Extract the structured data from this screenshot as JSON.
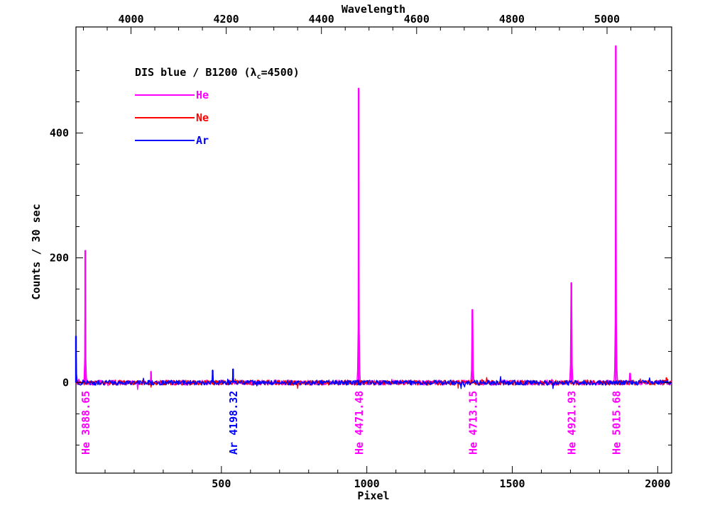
{
  "chart_data": {
    "type": "line",
    "title": "DIS blue / B1200 (λ",
    "title_sub": "c",
    "title_tail": "=4500)",
    "xlabel": "Pixel",
    "ylabel": "Counts / 30 sec",
    "x2label": "Wavelength",
    "xlim": [
      0,
      2048
    ],
    "ylim": [
      -145,
      570
    ],
    "x_ticks": [
      500,
      1000,
      1500,
      2000
    ],
    "y_ticks": [
      0,
      200,
      400
    ],
    "wavelength_ticks": [
      4000,
      4200,
      4400,
      4600,
      4800,
      5000
    ],
    "wavelength_calibration": {
      "lambda0": 3884.4,
      "dispersion": 0.611
    },
    "noise_amplitude": 4,
    "grid": false,
    "legend_position": "top-left",
    "series": [
      {
        "name": "He",
        "color": "#ff00ff",
        "peaks": [
          {
            "x": 32,
            "y": 212
          },
          {
            "x": 258,
            "y": 18
          },
          {
            "x": 972,
            "y": 472
          },
          {
            "x": 1363,
            "y": 117
          },
          {
            "x": 1703,
            "y": 160
          },
          {
            "x": 1856,
            "y": 540
          },
          {
            "x": 1905,
            "y": 15
          }
        ]
      },
      {
        "name": "Ne",
        "color": "#ff0000",
        "peaks": [
          {
            "x": 2030,
            "y": 8
          }
        ]
      },
      {
        "name": "Ar",
        "color": "#0000ff",
        "peaks": [
          {
            "x": 0,
            "y": 75
          },
          {
            "x": 470,
            "y": 20
          },
          {
            "x": 540,
            "y": 22
          }
        ]
      }
    ],
    "line_labels": [
      {
        "text": "He 3888.65",
        "x": 32,
        "color": "#ff00ff"
      },
      {
        "text": "Ar 4198.32",
        "x": 540,
        "color": "#0000ff"
      },
      {
        "text": "He 4471.48",
        "x": 972,
        "color": "#ff00ff"
      },
      {
        "text": "He 4713.15",
        "x": 1363,
        "color": "#ff00ff"
      },
      {
        "text": "He 4921.93",
        "x": 1703,
        "color": "#ff00ff"
      },
      {
        "text": "He 5015.68",
        "x": 1856,
        "color": "#ff00ff"
      }
    ]
  }
}
